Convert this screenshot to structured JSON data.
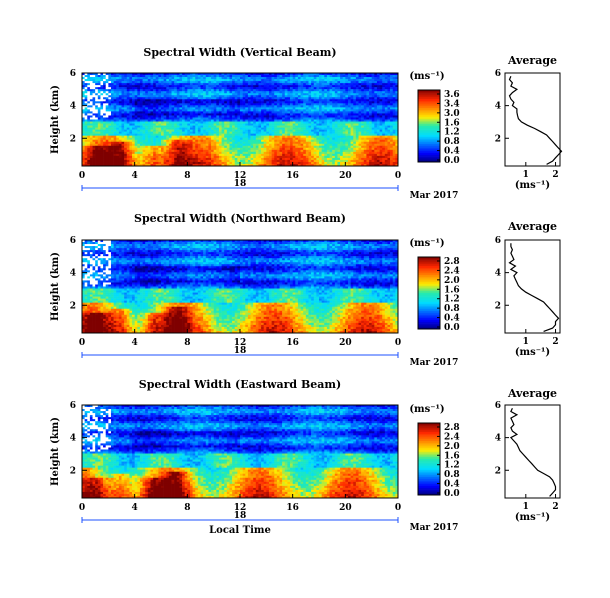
{
  "chart_data": [
    {
      "type": "heatmap",
      "title": "Spectral Width (Vertical Beam)",
      "ylabel": "Height (km)",
      "yticks": [
        "6",
        "4",
        "2"
      ],
      "ylim": [
        0.3,
        6
      ],
      "xticks": [
        "0",
        "4",
        "8",
        "12",
        "16",
        "20",
        "0"
      ],
      "xlim": [
        0,
        24
      ],
      "date_label": "18",
      "month_label": "Mar 2017",
      "colorbar": {
        "unit": "(ms⁻¹)",
        "ticks": [
          "3.6",
          "3.4",
          "3.0",
          "1.6",
          "1.2",
          "0.8",
          "0.4",
          "0.0"
        ],
        "range": [
          0.0,
          3.6
        ]
      },
      "average": {
        "title": "Average",
        "xlabel": "(ms⁻¹)",
        "xticks": [
          "1",
          "2"
        ],
        "yticks": [
          "6",
          "4",
          "2"
        ],
        "heights": [
          0.4,
          0.6,
          0.8,
          1.0,
          1.2,
          1.4,
          1.6,
          1.8,
          2.0,
          2.2,
          2.4,
          2.6,
          2.8,
          3.0,
          3.2,
          3.4,
          3.6,
          3.8,
          4.0,
          4.2,
          4.4,
          4.6,
          4.8,
          5.0,
          5.2,
          5.4,
          5.6,
          5.8
        ],
        "values": [
          1.7,
          1.9,
          2.0,
          2.1,
          2.2,
          2.1,
          2.0,
          1.9,
          1.8,
          1.7,
          1.5,
          1.3,
          1.05,
          0.85,
          0.75,
          0.72,
          0.7,
          0.7,
          0.55,
          0.6,
          0.5,
          0.45,
          0.55,
          0.7,
          0.5,
          0.55,
          0.45,
          0.5
        ]
      }
    },
    {
      "type": "heatmap",
      "title": "Spectral Width (Northward Beam)",
      "ylabel": "Height (km)",
      "yticks": [
        "6",
        "4",
        "2"
      ],
      "ylim": [
        0.3,
        6
      ],
      "xticks": [
        "0",
        "4",
        "8",
        "12",
        "16",
        "20",
        "0"
      ],
      "xlim": [
        0,
        24
      ],
      "date_label": "18",
      "month_label": "Mar 2017",
      "colorbar": {
        "unit": "(ms⁻¹)",
        "ticks": [
          "2.8",
          "2.4",
          "2.0",
          "1.6",
          "1.2",
          "0.8",
          "0.4",
          "0.0"
        ],
        "range": [
          0.0,
          2.8
        ]
      },
      "average": {
        "title": "Average",
        "xlabel": "(ms⁻¹)",
        "xticks": [
          "1",
          "2"
        ],
        "yticks": [
          "6",
          "4",
          "2"
        ],
        "heights": [
          0.4,
          0.6,
          0.8,
          1.0,
          1.2,
          1.4,
          1.6,
          1.8,
          2.0,
          2.2,
          2.4,
          2.6,
          2.8,
          3.0,
          3.2,
          3.4,
          3.6,
          3.8,
          4.0,
          4.2,
          4.4,
          4.6,
          4.8,
          5.0,
          5.2,
          5.4,
          5.6,
          5.8
        ],
        "values": [
          1.6,
          1.9,
          2.0,
          2.0,
          2.1,
          2.0,
          1.9,
          1.8,
          1.7,
          1.6,
          1.4,
          1.2,
          1.0,
          0.85,
          0.75,
          0.7,
          0.65,
          0.6,
          0.7,
          0.5,
          0.65,
          0.45,
          0.6,
          0.55,
          0.5,
          0.55,
          0.5,
          0.5
        ]
      }
    },
    {
      "type": "heatmap",
      "title": "Spectral Width (Eastward Beam)",
      "ylabel": "Height (km)",
      "yticks": [
        "6",
        "4",
        "2"
      ],
      "ylim": [
        0.3,
        6
      ],
      "xticks": [
        "0",
        "4",
        "8",
        "12",
        "16",
        "20",
        "0"
      ],
      "xlim": [
        0,
        24
      ],
      "date_label": "18",
      "month_label": "Mar 2017",
      "xlabel": "Local Time",
      "colorbar": {
        "unit": "(ms⁻¹)",
        "ticks": [
          "2.8",
          "2.4",
          "2.0",
          "1.6",
          "1.2",
          "0.8",
          "0.4",
          "0.0"
        ],
        "range": [
          0.0,
          2.8
        ]
      },
      "average": {
        "title": "Average",
        "xlabel": "(ms⁻¹)",
        "xticks": [
          "1",
          "2"
        ],
        "yticks": [
          "6",
          "4",
          "2"
        ],
        "heights": [
          0.4,
          0.6,
          0.8,
          1.0,
          1.2,
          1.4,
          1.6,
          1.8,
          2.0,
          2.2,
          2.4,
          2.6,
          2.8,
          3.0,
          3.2,
          3.4,
          3.6,
          3.8,
          4.0,
          4.2,
          4.4,
          4.6,
          4.8,
          5.0,
          5.2,
          5.4,
          5.6,
          5.8
        ],
        "values": [
          1.8,
          1.9,
          2.0,
          2.0,
          1.95,
          1.9,
          1.8,
          1.6,
          1.4,
          1.3,
          1.2,
          1.1,
          1.0,
          0.9,
          0.8,
          0.75,
          0.7,
          0.6,
          0.5,
          0.7,
          0.55,
          0.5,
          0.6,
          0.55,
          0.5,
          0.7,
          0.5,
          0.55
        ]
      }
    }
  ],
  "colors": {
    "dark": "#00007f",
    "blue": "#1e50ff",
    "cyan": "#22d4f0",
    "yellow": "#ffe020",
    "red": "#e8141c"
  }
}
